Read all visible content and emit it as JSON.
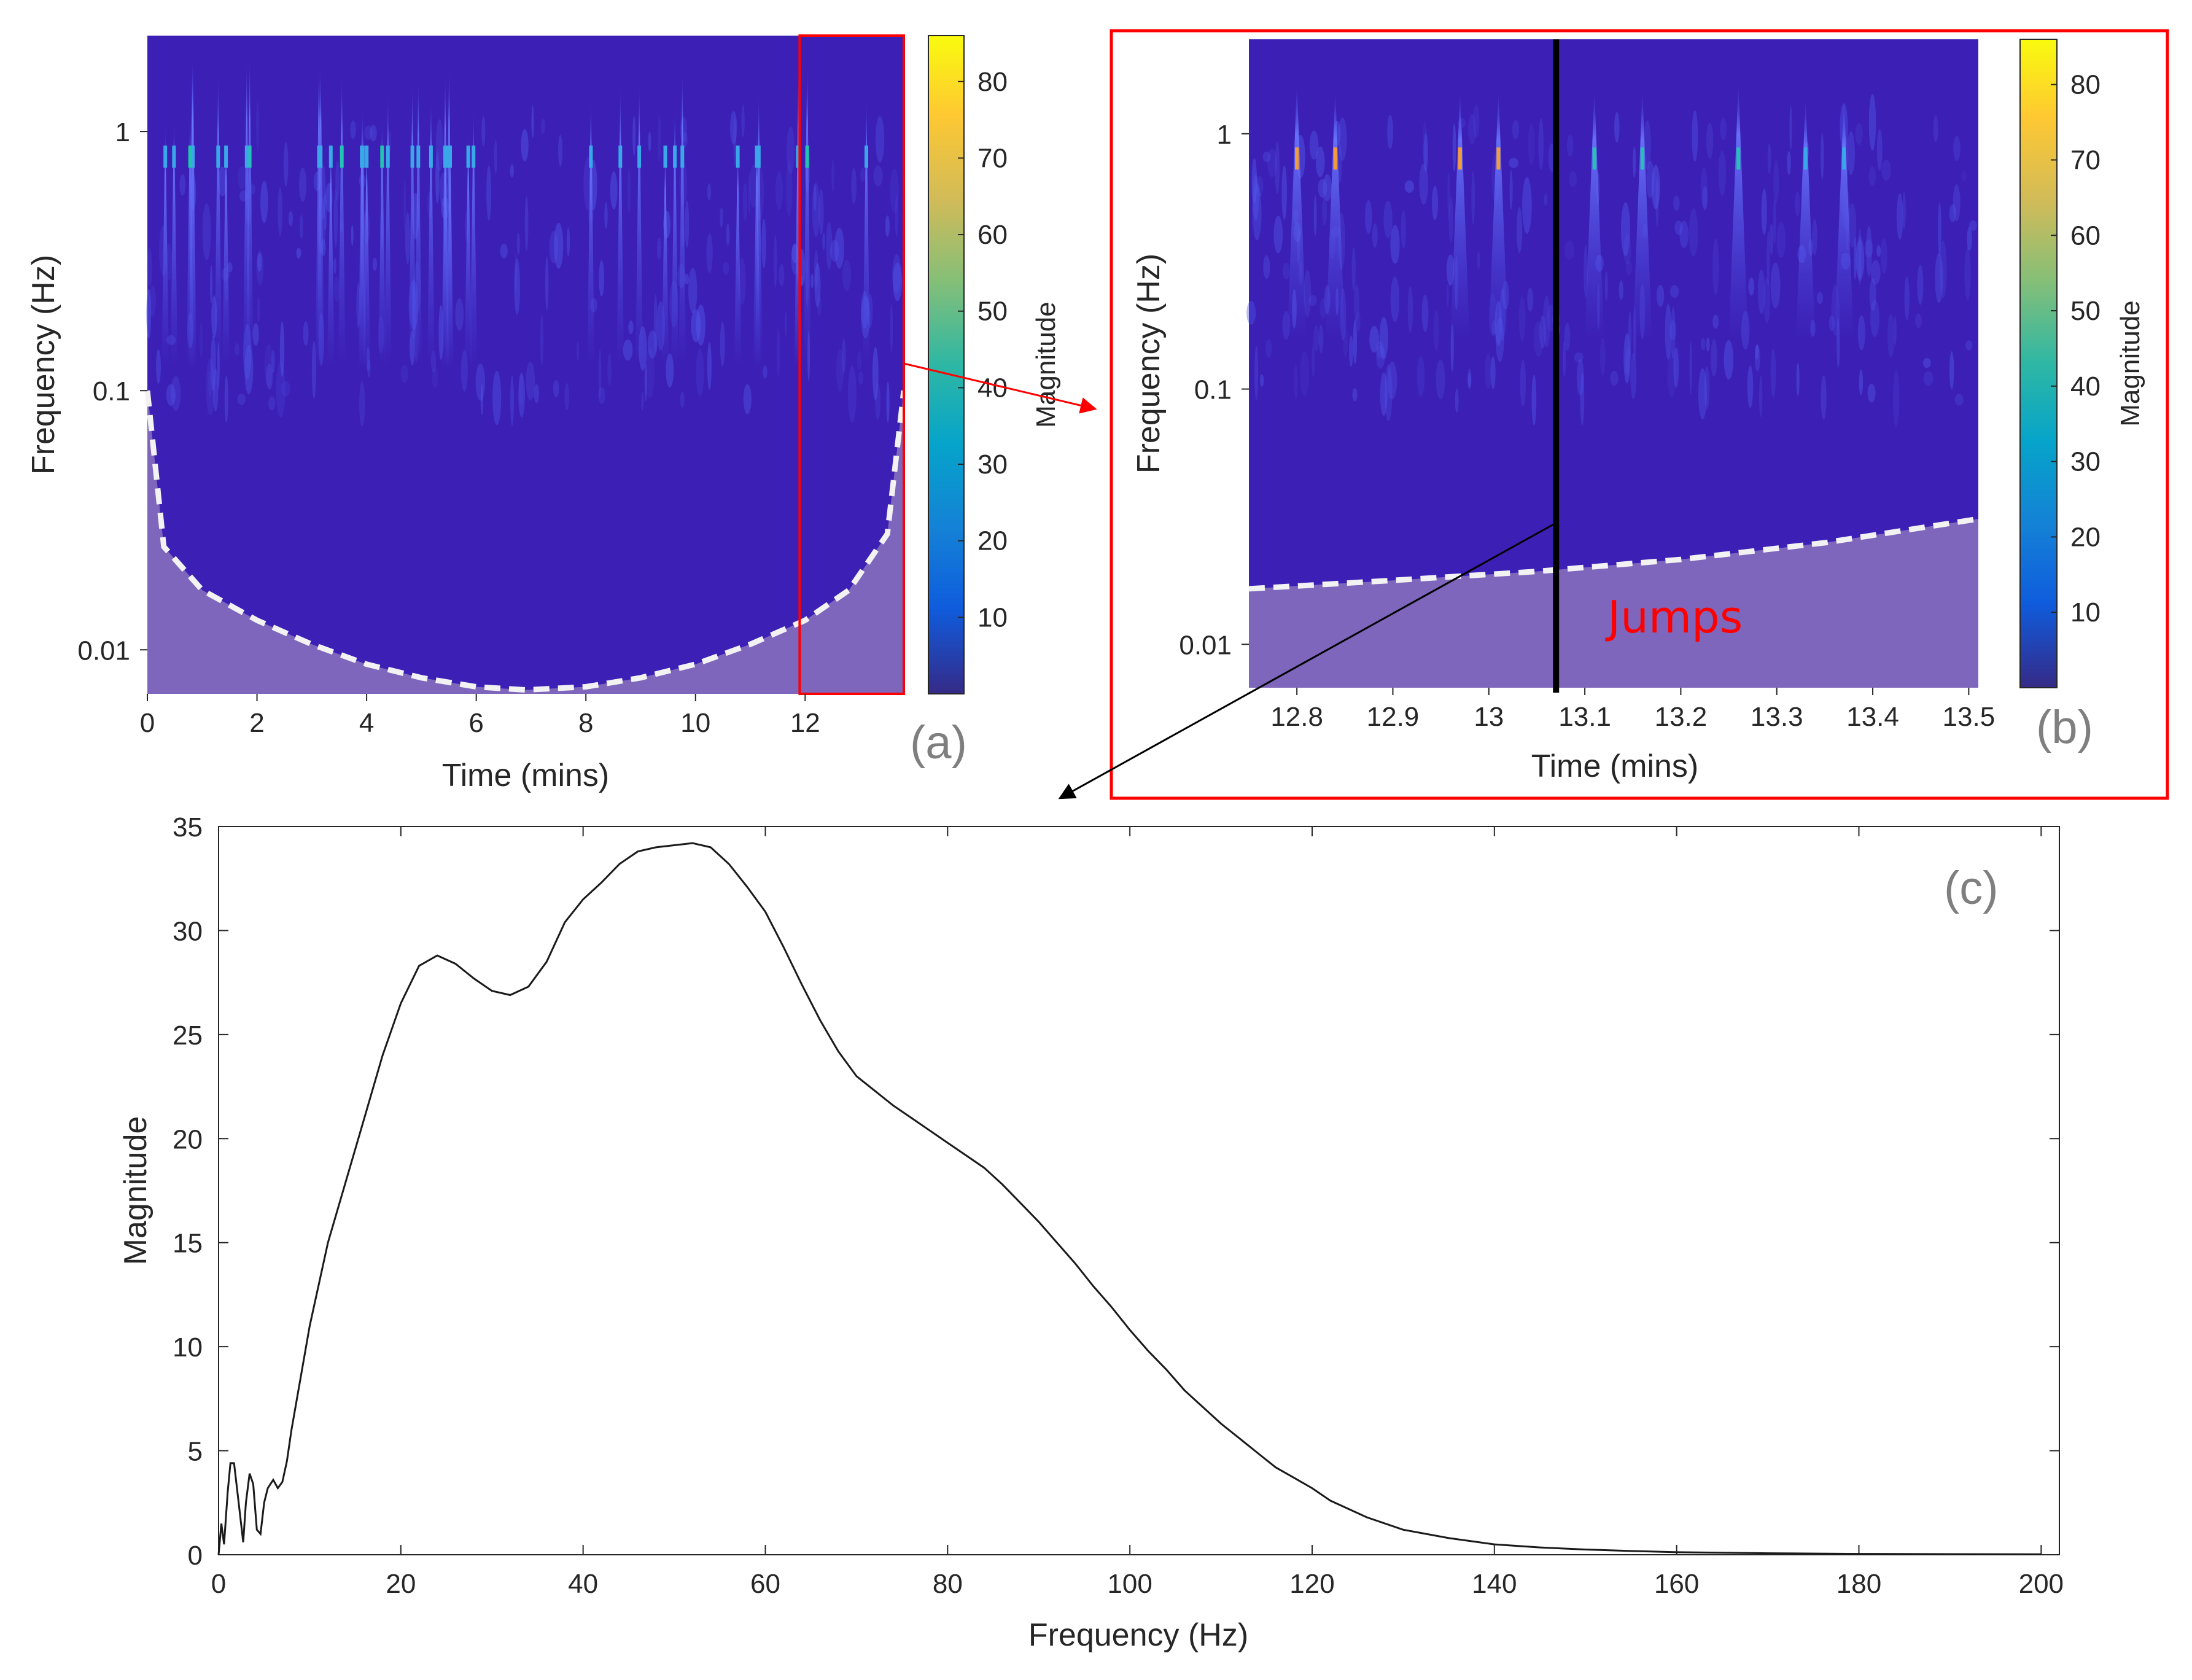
{
  "colors": {
    "scalogram_bg": "#3c1fb4",
    "coi_shade": "#7f66bd",
    "highlight": "#e8e8e8",
    "box_red": "#ff0000",
    "line": "#1a1a1a"
  },
  "chart_data": [
    {
      "id": "a",
      "type": "heatmap",
      "panel_label": "(a)",
      "xlabel": "Time (mins)",
      "ylabel": "Frequency (Hz)",
      "xlim": [
        0,
        13.8
      ],
      "ylim_log10": [
        -2.17,
        0.37
      ],
      "xticks": [
        0,
        2,
        4,
        6,
        8,
        10,
        12
      ],
      "xtick_labels": [
        "0",
        "2",
        "4",
        "6",
        "8",
        "10",
        "12"
      ],
      "yticks": [
        0.01,
        0.1,
        1
      ],
      "ytick_labels": [
        "0.01",
        "0.1",
        "1"
      ],
      "colorbar": {
        "label": "Magnitude",
        "ticks": [
          10,
          20,
          30,
          40,
          50,
          60,
          70,
          80
        ],
        "range": [
          0,
          86
        ]
      },
      "cone_of_influence": {
        "times": [
          0,
          0.3,
          1,
          2,
          3,
          4,
          5,
          6,
          6.9,
          8,
          9,
          10,
          11,
          12,
          12.8,
          13.5,
          13.8
        ],
        "freqs": [
          0.1,
          0.025,
          0.017,
          0.013,
          0.0105,
          0.0088,
          0.0078,
          0.0072,
          0.007,
          0.0072,
          0.0078,
          0.0088,
          0.0105,
          0.013,
          0.017,
          0.028,
          0.1
        ]
      },
      "zoom_box": {
        "x": [
          11.9,
          13.8
        ]
      }
    },
    {
      "id": "b",
      "type": "heatmap",
      "panel_label": "(b)",
      "xlabel": "Time (mins)",
      "ylabel": "Frequency (Hz)",
      "xlim": [
        12.75,
        13.51
      ],
      "ylim_log10": [
        -2.17,
        0.37
      ],
      "xticks": [
        12.8,
        12.9,
        13,
        13.1,
        13.2,
        13.3,
        13.4,
        13.5
      ],
      "xtick_labels": [
        "12.8",
        "12.9",
        "13",
        "13.1",
        "13.2",
        "13.3",
        "13.4",
        "13.5"
      ],
      "yticks": [
        0.01,
        0.1,
        1
      ],
      "ytick_labels": [
        "0.01",
        "0.1",
        "1"
      ],
      "colorbar": {
        "label": "Magnitude",
        "ticks": [
          10,
          20,
          30,
          40,
          50,
          60,
          70,
          80
        ],
        "range": [
          0,
          86
        ]
      },
      "cone_of_influence": {
        "times": [
          12.75,
          12.9,
          13.05,
          13.2,
          13.35,
          13.51
        ],
        "freqs": [
          0.0165,
          0.0178,
          0.0193,
          0.0215,
          0.025,
          0.031
        ]
      },
      "marker_time": 13.07,
      "annotation": "Jumps",
      "spikes": [
        {
          "t": 12.8,
          "top": 1.6,
          "peak": 70
        },
        {
          "t": 12.84,
          "top": 1.5,
          "peak": 65
        },
        {
          "t": 12.97,
          "top": 1.5,
          "peak": 70
        },
        {
          "t": 13.01,
          "top": 1.5,
          "peak": 65
        },
        {
          "t": 13.11,
          "top": 1.5,
          "peak": 40
        },
        {
          "t": 13.16,
          "top": 1.5,
          "peak": 45
        },
        {
          "t": 13.26,
          "top": 1.6,
          "peak": 40
        },
        {
          "t": 13.33,
          "top": 1.4,
          "peak": 30
        },
        {
          "t": 13.37,
          "top": 1.4,
          "peak": 35
        }
      ]
    },
    {
      "id": "c",
      "type": "line",
      "panel_label": "(c)",
      "xlabel": "Frequency (Hz)",
      "ylabel": "Magnitude",
      "xlim": [
        0,
        202
      ],
      "ylim": [
        0,
        35
      ],
      "xticks": [
        0,
        20,
        40,
        60,
        80,
        100,
        120,
        140,
        160,
        180,
        200
      ],
      "xtick_labels": [
        "0",
        "20",
        "40",
        "60",
        "80",
        "100",
        "120",
        "140",
        "160",
        "180",
        "200"
      ],
      "yticks": [
        0,
        5,
        10,
        15,
        20,
        25,
        30,
        35
      ],
      "ytick_labels": [
        "0",
        "5",
        "10",
        "15",
        "20",
        "25",
        "30",
        "35"
      ],
      "series": [
        {
          "name": "Magnitude",
          "x": [
            0,
            0.3,
            0.6,
            1,
            1.3,
            1.7,
            2.2,
            2.7,
            3,
            3.4,
            3.8,
            4.2,
            4.6,
            5,
            5.4,
            6,
            6.5,
            7,
            7.5,
            8,
            10,
            12,
            14,
            16,
            18,
            20,
            22,
            24,
            26,
            28,
            30,
            32,
            34,
            36,
            38,
            40,
            42,
            44,
            46,
            48,
            50,
            52,
            54,
            56,
            58,
            60,
            62,
            64,
            66,
            68,
            70,
            72,
            74,
            76,
            78,
            80,
            82,
            84,
            86,
            88,
            90,
            92,
            94,
            96,
            98,
            100,
            102,
            104,
            106,
            108,
            110,
            112,
            114,
            116,
            118,
            120,
            122,
            126,
            130,
            135,
            140,
            145,
            150,
            155,
            160,
            170,
            180,
            190,
            200
          ],
          "values": [
            0,
            1.5,
            0.5,
            3,
            4.4,
            4.4,
            2.5,
            0.6,
            2.5,
            3.9,
            3.4,
            1.2,
            1.0,
            2.5,
            3.2,
            3.6,
            3.2,
            3.5,
            4.5,
            6,
            11,
            15,
            18,
            21,
            24,
            26.5,
            28.3,
            28.8,
            28.4,
            27.7,
            27.1,
            26.9,
            27.3,
            28.5,
            30.4,
            31.5,
            32.3,
            33.2,
            33.8,
            34.0,
            34.1,
            34.2,
            34.0,
            33.2,
            32.1,
            30.9,
            29.2,
            27.4,
            25.7,
            24.2,
            23.0,
            22.3,
            21.6,
            21.0,
            20.4,
            19.8,
            19.2,
            18.6,
            17.8,
            16.9,
            16.0,
            15.0,
            14.0,
            12.9,
            11.9,
            10.8,
            9.8,
            8.9,
            7.9,
            7.1,
            6.3,
            5.6,
            4.9,
            4.2,
            3.7,
            3.2,
            2.6,
            1.8,
            1.2,
            0.8,
            0.5,
            0.35,
            0.25,
            0.18,
            0.12,
            0.07,
            0.04,
            0.03,
            0.02
          ]
        }
      ]
    }
  ]
}
